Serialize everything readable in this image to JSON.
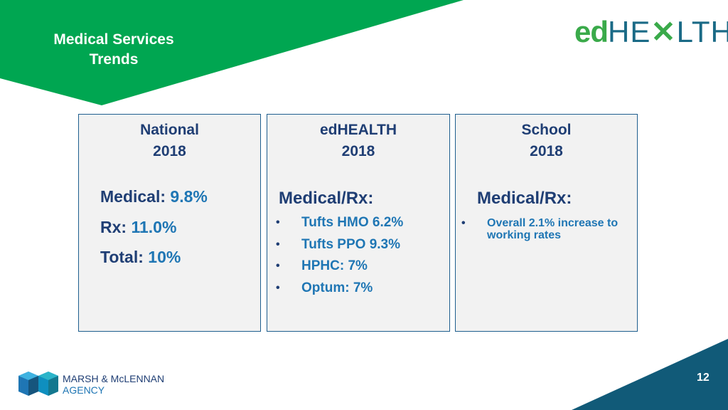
{
  "header": {
    "title_line1": "Medical Services",
    "title_line2": "Trends",
    "banner_color": "#00a651"
  },
  "logo": {
    "ed": "ed",
    "he": "HE",
    "x": "✕",
    "lth": "LTH"
  },
  "cards": [
    {
      "heading_line1": "National",
      "heading_line2": "2018",
      "stats": [
        {
          "label": "Medical:",
          "value": "9.8%"
        },
        {
          "label": "Rx:",
          "value": "11.0%"
        },
        {
          "label": "Total:",
          "value": "10%"
        }
      ]
    },
    {
      "heading_line1": "edHEALTH",
      "heading_line2": "2018",
      "subheading": "Medical/Rx:",
      "bullets": [
        "Tufts HMO 6.2%",
        "Tufts PPO 9.3%",
        "HPHC: 7%",
        "Optum: 7%"
      ]
    },
    {
      "heading_line1": "School",
      "heading_line2": "2018",
      "subheading": "Medical/Rx:",
      "bullets": [
        "Overall 2.1% increase to working rates"
      ]
    }
  ],
  "footer": {
    "brand_line1": "MARSH & McLENNAN",
    "brand_line2": "AGENCY",
    "page_number": "12",
    "corner_color": "#115a78"
  }
}
